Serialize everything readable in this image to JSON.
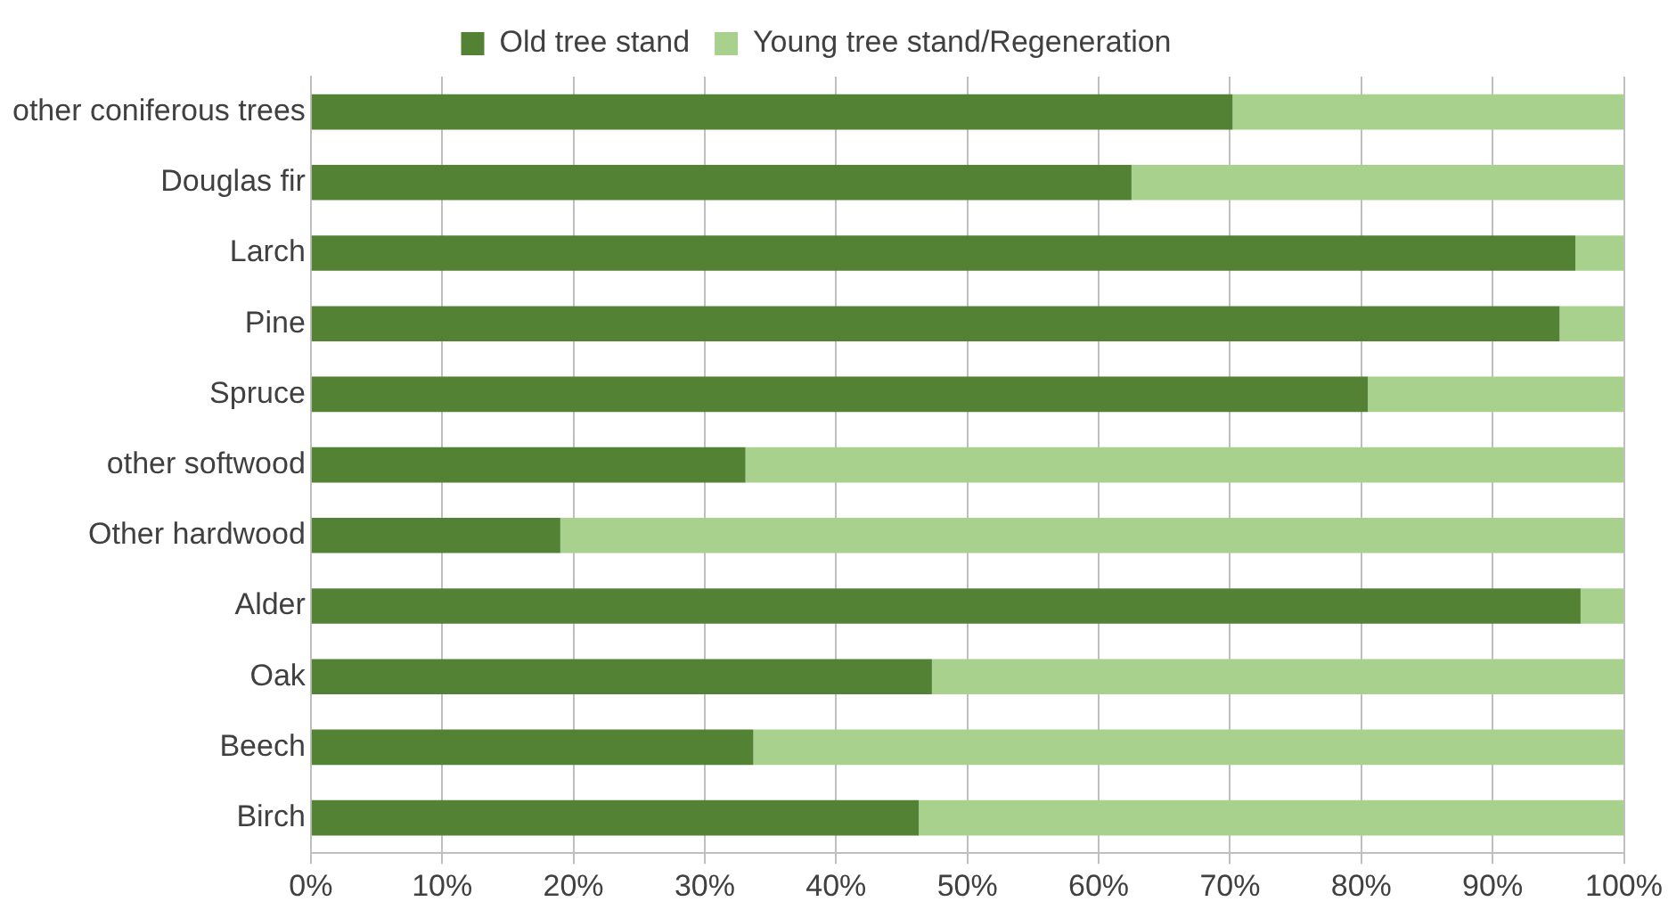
{
  "chart_data": {
    "type": "bar",
    "orientation": "horizontal",
    "stacked": true,
    "categories": [
      "other coniferous trees",
      "Douglas fir",
      "Larch",
      "Pine",
      "Spruce",
      "other softwood",
      "Other hardwood",
      "Alder",
      "Oak",
      "Beech",
      "Birch"
    ],
    "series": [
      {
        "name": "Old tree stand",
        "color": "#548235",
        "values": [
          70.2,
          62.5,
          96.3,
          95.1,
          80.5,
          33.1,
          19.0,
          96.7,
          47.3,
          33.7,
          46.3
        ]
      },
      {
        "name": "Young tree stand/Regeneration",
        "color": "#a9d18e",
        "values": [
          29.8,
          37.5,
          3.7,
          4.9,
          19.5,
          66.9,
          81.0,
          3.3,
          52.7,
          66.3,
          53.7
        ]
      }
    ],
    "xlim": [
      0,
      100
    ],
    "xticks": [
      {
        "value": 0,
        "label": "0%"
      },
      {
        "value": 10,
        "label": "10%"
      },
      {
        "value": 20,
        "label": "20%"
      },
      {
        "value": 30,
        "label": "30%"
      },
      {
        "value": 40,
        "label": "40%"
      },
      {
        "value": 50,
        "label": "50%"
      },
      {
        "value": 60,
        "label": "60%"
      },
      {
        "value": 70,
        "label": "70%"
      },
      {
        "value": 80,
        "label": "80%"
      },
      {
        "value": 90,
        "label": "90%"
      },
      {
        "value": 100,
        "label": "100%"
      }
    ],
    "grid": "x",
    "legend": "top"
  }
}
